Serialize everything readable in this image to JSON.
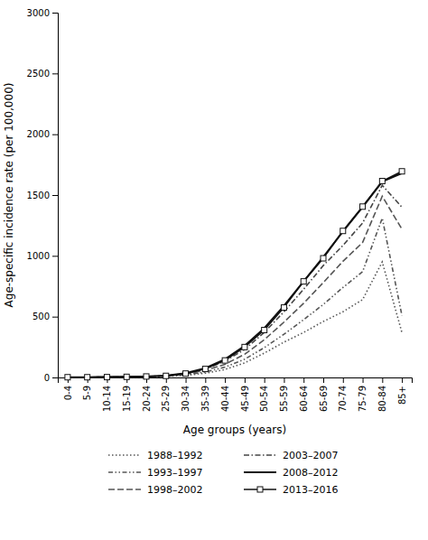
{
  "chart_data": {
    "type": "line",
    "categories": [
      "0-4",
      "5-9",
      "10-14",
      "15-19",
      "20-24",
      "25-29",
      "30-34",
      "35-39",
      "40-44",
      "45-49",
      "50-54",
      "55-59",
      "60-64",
      "65-69",
      "70-74",
      "75-79",
      "80-84",
      "85+"
    ],
    "series": [
      {
        "name": "1988–1992",
        "color": "#555555",
        "line_style": "dotted",
        "values": [
          2,
          2,
          3,
          4,
          5,
          8,
          18,
          35,
          65,
          120,
          200,
          290,
          370,
          460,
          540,
          640,
          950,
          370
        ]
      },
      {
        "name": "1993–1997",
        "color": "#555555",
        "line_style": "dashdotdot",
        "values": [
          2,
          2,
          3,
          4,
          6,
          10,
          22,
          45,
          85,
          150,
          245,
          355,
          475,
          600,
          740,
          870,
          1310,
          510
        ]
      },
      {
        "name": "1998–2002",
        "color": "#555555",
        "line_style": "dashed",
        "values": [
          2,
          2,
          3,
          5,
          7,
          12,
          28,
          58,
          108,
          190,
          310,
          455,
          610,
          780,
          955,
          1110,
          1490,
          1220
        ]
      },
      {
        "name": "2003–2007",
        "color": "#444444",
        "line_style": "dashdot",
        "values": [
          2,
          2,
          3,
          5,
          8,
          13,
          32,
          68,
          135,
          230,
          370,
          540,
          725,
          920,
          1085,
          1270,
          1580,
          1400
        ]
      },
      {
        "name": "2008–2012",
        "color": "#111111",
        "line_style": "solid",
        "values": [
          2,
          2,
          3,
          5,
          8,
          14,
          36,
          76,
          150,
          260,
          405,
          590,
          790,
          990,
          1200,
          1400,
          1610,
          1680
        ]
      },
      {
        "name": "2013–2016",
        "color": "#111111",
        "line_style": "solid",
        "marker": "square",
        "values": [
          2,
          2,
          3,
          5,
          8,
          13,
          32,
          70,
          140,
          250,
          390,
          575,
          790,
          980,
          1205,
          1405,
          1615,
          1695
        ]
      }
    ],
    "xlabel": "Age groups (years)",
    "ylabel": "Age-specific incidence rate (per 100,000)",
    "ylim": [
      0,
      3000
    ],
    "yticks": [
      0,
      500,
      1000,
      1500,
      2000,
      2500,
      3000
    ],
    "grid": false,
    "legend": "bottom"
  }
}
